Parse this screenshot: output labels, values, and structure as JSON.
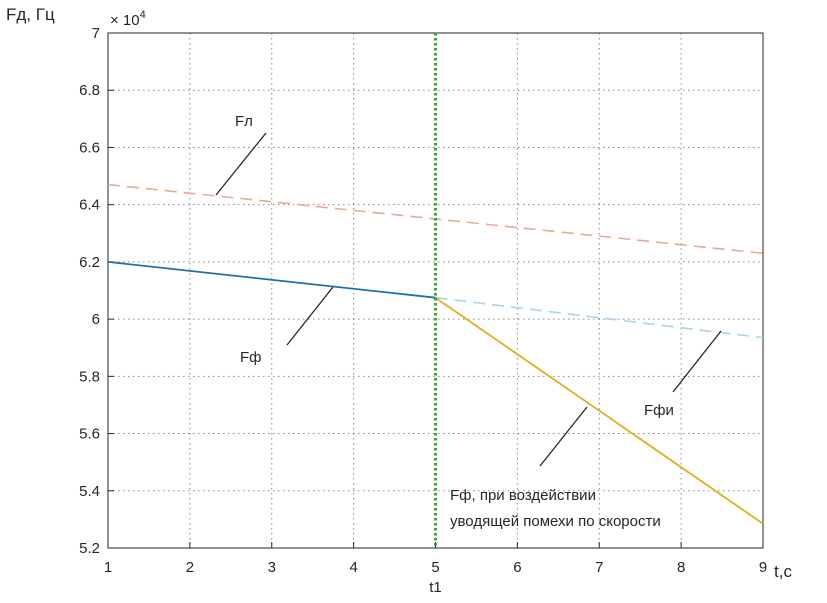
{
  "chart_data": {
    "type": "line",
    "ylabel": "Fд, Гц",
    "xlabel": "t,с",
    "y_exponent_label": "× 10",
    "y_exponent_power": "4",
    "xlim": [
      1,
      9
    ],
    "ylim": [
      52000,
      70000
    ],
    "x_ticks": [
      1,
      2,
      3,
      4,
      5,
      6,
      7,
      8,
      9
    ],
    "x_tick_labels": [
      "1",
      "2",
      "3",
      "4",
      "5",
      "6",
      "7",
      "8",
      "9"
    ],
    "y_ticks": [
      52000,
      54000,
      56000,
      58000,
      60000,
      62000,
      64000,
      66000,
      68000,
      70000
    ],
    "y_tick_labels": [
      "5.2",
      "5.4",
      "5.6",
      "5.8",
      "6",
      "6.2",
      "6.4",
      "6.6",
      "6.8",
      "7"
    ],
    "grid": true,
    "vertical_marker": {
      "x": 5,
      "label": "t1",
      "color": "#22b422"
    },
    "series": [
      {
        "name": "Fл",
        "style": "dashed",
        "color": "#e8a995",
        "x": [
          1,
          9
        ],
        "y": [
          64700,
          62300
        ]
      },
      {
        "name": "Fф",
        "style": "solid",
        "color": "#1f6fae",
        "x": [
          1,
          5
        ],
        "y": [
          62000,
          60750
        ]
      },
      {
        "name": "Fфи",
        "style": "dashed",
        "color": "#a9d2ee",
        "x": [
          5,
          9
        ],
        "y": [
          60750,
          59350
        ]
      },
      {
        "name": "Fф, при воздействии уводящей помехи по скорости",
        "style": "solid",
        "color": "#e0ae22",
        "x": [
          5,
          9
        ],
        "y": [
          60750,
          52850
        ]
      }
    ],
    "annotations": [
      {
        "text": "Fл",
        "series": "Fл"
      },
      {
        "text": "Fф",
        "series": "Fф"
      },
      {
        "text": "Fфи",
        "series": "Fфи"
      },
      {
        "lines": [
          "Fф, при воздействии",
          "уводящей помехи по скорости"
        ],
        "series": "jammed"
      }
    ]
  }
}
